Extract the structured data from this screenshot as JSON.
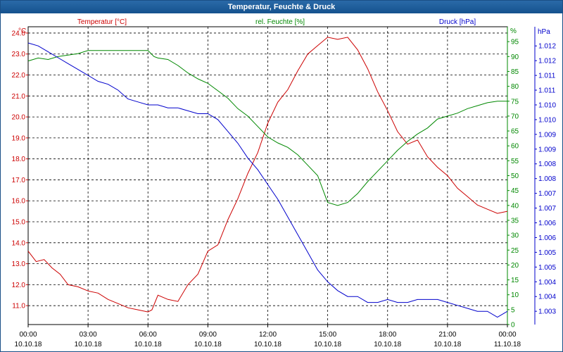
{
  "window": {
    "title": "Temperatur, Feuchte & Druck"
  },
  "colors": {
    "temperature": "#cc0000",
    "humidity": "#008800",
    "pressure": "#0000cc",
    "grid": "#000000",
    "title_bar": "#1a5a98"
  },
  "chart_data": {
    "type": "line",
    "title": "Temperatur, Feuchte & Druck",
    "grid": true,
    "x": {
      "unit": "hours",
      "range": [
        0,
        24
      ],
      "ticks": [
        0,
        3,
        6,
        9,
        12,
        15,
        18,
        21,
        24
      ],
      "tick_labels": [
        [
          "00:00",
          "10.10.18"
        ],
        [
          "03:00",
          "10.10.18"
        ],
        [
          "06:00",
          "10.10.18"
        ],
        [
          "09:00",
          "10.10.18"
        ],
        [
          "12:00",
          "10.10.18"
        ],
        [
          "15:00",
          "10.10.18"
        ],
        [
          "18:00",
          "10.10.18"
        ],
        [
          "21:00",
          "10.10.18"
        ],
        [
          "00:00",
          "11.10.18"
        ]
      ]
    },
    "axes": {
      "temperature": {
        "label": "Temperatur [°C]",
        "unit": "°C",
        "side": "left",
        "range": [
          10.1,
          24.3
        ],
        "ticks": [
          11.0,
          12.0,
          13.0,
          14.0,
          15.0,
          16.0,
          17.0,
          18.0,
          19.0,
          20.0,
          21.0,
          22.0,
          23.0,
          24.0
        ],
        "tick_labels": [
          "11.0",
          "12.0",
          "13.0",
          "14.0",
          "15.0",
          "16.0",
          "17.0",
          "18.0",
          "19.0",
          "20.0",
          "21.0",
          "22.0",
          "23.0",
          "24.0"
        ]
      },
      "humidity": {
        "label": "rel. Feuchte [%]",
        "unit": "%",
        "side": "right",
        "range": [
          0,
          100
        ],
        "ticks": [
          0,
          5,
          10,
          15,
          20,
          25,
          30,
          35,
          40,
          45,
          50,
          55,
          60,
          65,
          70,
          75,
          80,
          85,
          90,
          95
        ],
        "tick_labels": [
          "0",
          "5",
          "10",
          "15",
          "20",
          "25",
          "30",
          "35",
          "40",
          "45",
          "50",
          "55",
          "60",
          "65",
          "70",
          "75",
          "80",
          "85",
          "90",
          "95"
        ]
      },
      "pressure": {
        "label": "Druck [hPa]",
        "unit": "hPa",
        "side": "right-outer",
        "range": [
          1.00255,
          1.01265
        ],
        "ticks": [
          1.003,
          1.0035,
          1.004,
          1.0045,
          1.005,
          1.0055,
          1.006,
          1.0065,
          1.007,
          1.0075,
          1.008,
          1.0085,
          1.009,
          1.0095,
          1.01,
          1.0105,
          1.011,
          1.0115,
          1.012
        ],
        "tick_labels": [
          "1.003",
          "1.004",
          "1.004",
          "1.005",
          "1.005",
          "1.006",
          "1.006",
          "1.007",
          "1.007",
          "1.008",
          "1.008",
          "1.009",
          "1.009",
          "1.010",
          "1.010",
          "1.011",
          "1.011",
          "1.012",
          "1.012"
        ]
      }
    },
    "series": [
      {
        "name": "Temperatur [°C]",
        "axis": "temperature",
        "x": [
          0,
          0.4,
          0.8,
          1.2,
          1.6,
          2.0,
          2.5,
          3.0,
          3.5,
          4.0,
          4.5,
          5.0,
          5.5,
          6.0,
          6.2,
          6.5,
          7.0,
          7.5,
          8.0,
          8.5,
          9.0,
          9.5,
          10.0,
          10.5,
          11.0,
          11.5,
          12.0,
          12.5,
          13.0,
          13.5,
          14.0,
          14.5,
          15.0,
          15.5,
          16.0,
          16.5,
          17.0,
          17.5,
          18.0,
          18.5,
          19.0,
          19.5,
          20.0,
          20.5,
          21.0,
          21.5,
          22.0,
          22.5,
          23.0,
          23.5,
          24.0
        ],
        "values": [
          13.6,
          13.1,
          13.2,
          12.8,
          12.5,
          12.0,
          11.9,
          11.7,
          11.6,
          11.3,
          11.1,
          10.9,
          10.8,
          10.7,
          10.8,
          11.5,
          11.3,
          11.2,
          12.0,
          12.5,
          13.6,
          13.9,
          15.1,
          16.1,
          17.3,
          18.3,
          19.7,
          20.7,
          21.3,
          22.2,
          23.0,
          23.4,
          23.8,
          23.7,
          23.8,
          23.2,
          22.3,
          21.2,
          20.3,
          19.3,
          18.7,
          18.9,
          18.1,
          17.6,
          17.2,
          16.6,
          16.2,
          15.8,
          15.6,
          15.4,
          15.5
        ]
      },
      {
        "name": "rel. Feuchte [%]",
        "axis": "humidity",
        "x": [
          0,
          0.5,
          1.0,
          1.5,
          2.0,
          2.5,
          3.0,
          3.5,
          4.0,
          4.5,
          5.0,
          5.5,
          6.0,
          6.3,
          6.5,
          7.0,
          7.5,
          8.0,
          8.5,
          9.0,
          9.5,
          10.0,
          10.5,
          11.0,
          11.5,
          12.0,
          12.5,
          13.0,
          13.5,
          14.0,
          14.5,
          15.0,
          15.5,
          16.0,
          16.5,
          17.0,
          17.5,
          18.0,
          18.5,
          19.0,
          19.5,
          20.0,
          20.5,
          21.0,
          21.5,
          22.0,
          22.5,
          23.0,
          23.5,
          24.0
        ],
        "values": [
          88.5,
          89.5,
          89,
          90,
          90.5,
          91,
          92,
          92,
          92,
          92,
          92,
          92,
          92,
          90,
          89.5,
          89,
          87,
          84.5,
          82.5,
          81,
          78.5,
          76,
          72.5,
          70,
          66.5,
          63,
          61,
          59.5,
          57,
          53.5,
          50,
          41,
          40,
          41,
          44,
          48,
          51.5,
          55,
          58.5,
          61.5,
          64,
          66,
          69,
          70,
          71,
          72.5,
          73.5,
          74.5,
          75,
          75
        ]
      },
      {
        "name": "Druck [hPa]",
        "axis": "pressure",
        "x": [
          0,
          0.5,
          1.0,
          1.5,
          2.0,
          2.5,
          3.0,
          3.5,
          4.0,
          4.5,
          5.0,
          5.5,
          6.0,
          6.5,
          7.0,
          7.5,
          8.0,
          8.5,
          9.0,
          9.5,
          10.0,
          10.5,
          11.0,
          11.5,
          12.0,
          12.5,
          13.0,
          13.5,
          14.0,
          14.5,
          15.0,
          15.5,
          16.0,
          16.5,
          17.0,
          17.5,
          18.0,
          18.5,
          19.0,
          19.5,
          20.0,
          20.5,
          21.0,
          21.5,
          22.0,
          22.5,
          23.0,
          23.5,
          24.0
        ],
        "values": [
          1.0121,
          1.012,
          1.0118,
          1.0116,
          1.0114,
          1.0112,
          1.011,
          1.0108,
          1.0107,
          1.0105,
          1.0102,
          1.0101,
          1.01,
          1.01,
          1.0099,
          1.0099,
          1.0098,
          1.0097,
          1.0097,
          1.0095,
          1.0091,
          1.0087,
          1.0082,
          1.0078,
          1.0073,
          1.0068,
          1.0062,
          1.0056,
          1.005,
          1.0044,
          1.004,
          1.0037,
          1.0035,
          1.0035,
          1.0033,
          1.0033,
          1.0034,
          1.0033,
          1.0033,
          1.0034,
          1.0034,
          1.0034,
          1.0033,
          1.0032,
          1.0031,
          1.003,
          1.003,
          1.0028,
          1.003
        ]
      }
    ]
  }
}
